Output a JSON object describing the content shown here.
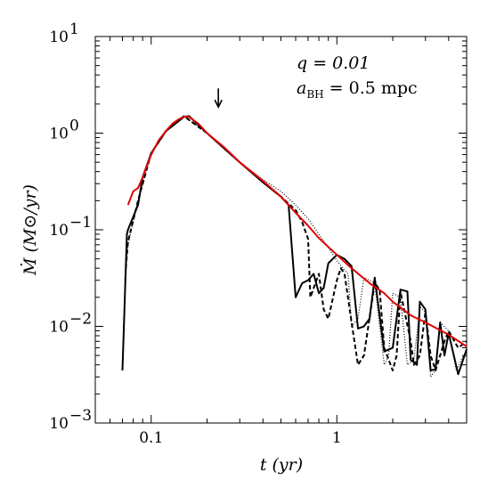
{
  "chart_data": {
    "type": "line",
    "title": "",
    "xlabel": "t   (yr)",
    "ylabel": "Ṁ   (M⊙/yr)",
    "xscale": "log",
    "yscale": "log",
    "xlim": [
      0.05,
      5
    ],
    "ylim": [
      0.001,
      10
    ],
    "x_ticks": [
      {
        "value": 0.1,
        "label": "0.1"
      },
      {
        "value": 1,
        "label": "1"
      }
    ],
    "y_ticks": [
      {
        "value": 0.001,
        "base": "10",
        "exp": "−3"
      },
      {
        "value": 0.01,
        "base": "10",
        "exp": "−2"
      },
      {
        "value": 0.1,
        "base": "10",
        "exp": "−1"
      },
      {
        "value": 1,
        "base": "10",
        "exp": "0"
      },
      {
        "value": 10,
        "base": "10",
        "exp": "1"
      }
    ],
    "grid": false,
    "annotations": {
      "line1": "q = 0.01",
      "line2": "a",
      "line2_sub": "BH",
      "line2_rest": " = 0.5 mpc",
      "arrow_x": 0.23,
      "arrow_y": 1.9
    },
    "series": [
      {
        "style": "red-solid",
        "color": "#e00000",
        "x": [
          0.075,
          0.08,
          0.085,
          0.09,
          0.1,
          0.11,
          0.12,
          0.13,
          0.14,
          0.15,
          0.16,
          0.18,
          0.2,
          0.25,
          0.3,
          0.4,
          0.5,
          0.6,
          0.7,
          0.8,
          1.0,
          1.2,
          1.5,
          1.8,
          2.0,
          2.5,
          3.0,
          4.0,
          5.0
        ],
        "y": [
          0.18,
          0.25,
          0.27,
          0.35,
          0.6,
          0.85,
          1.05,
          1.25,
          1.38,
          1.48,
          1.47,
          1.25,
          1.0,
          0.7,
          0.5,
          0.32,
          0.22,
          0.15,
          0.11,
          0.082,
          0.055,
          0.04,
          0.028,
          0.022,
          0.018,
          0.013,
          0.011,
          0.0082,
          0.0062
        ]
      },
      {
        "style": "black-solid",
        "color": "#000000",
        "x": [
          0.07,
          0.074,
          0.075,
          0.085,
          0.09,
          0.1,
          0.12,
          0.15,
          0.16,
          0.2,
          0.3,
          0.4,
          0.5,
          0.55,
          0.6,
          0.65,
          0.7,
          0.75,
          0.8,
          0.85,
          0.9,
          1.0,
          1.1,
          1.2,
          1.3,
          1.4,
          1.5,
          1.6,
          1.8,
          2.0,
          2.2,
          2.4,
          2.5,
          2.7,
          2.8,
          3.0,
          3.2,
          3.4,
          3.6,
          3.8,
          4.0,
          4.5,
          5.0
        ],
        "y": [
          0.0035,
          0.09,
          0.1,
          0.18,
          0.35,
          0.62,
          1.05,
          1.47,
          1.5,
          1.0,
          0.5,
          0.31,
          0.22,
          0.18,
          0.02,
          0.028,
          0.03,
          0.035,
          0.022,
          0.025,
          0.045,
          0.055,
          0.05,
          0.042,
          0.0095,
          0.01,
          0.012,
          0.032,
          0.0055,
          0.006,
          0.024,
          0.023,
          0.0045,
          0.004,
          0.018,
          0.015,
          0.0035,
          0.0036,
          0.011,
          0.005,
          0.0085,
          0.0032,
          0.0058
        ]
      },
      {
        "style": "black-dashed",
        "color": "#000000",
        "x": [
          0.073,
          0.075,
          0.085,
          0.1,
          0.12,
          0.15,
          0.2,
          0.3,
          0.4,
          0.5,
          0.6,
          0.65,
          0.7,
          0.72,
          0.8,
          0.85,
          0.9,
          1.0,
          1.05,
          1.1,
          1.2,
          1.3,
          1.4,
          1.6,
          1.7,
          1.8,
          2.0,
          2.1,
          2.2,
          2.5,
          2.6,
          2.8,
          3.0,
          3.2,
          3.4,
          3.8,
          4.0,
          4.5,
          5.0
        ],
        "y": [
          0.04,
          0.075,
          0.2,
          0.62,
          1.05,
          1.5,
          1.0,
          0.5,
          0.31,
          0.22,
          0.16,
          0.12,
          0.08,
          0.02,
          0.035,
          0.015,
          0.012,
          0.03,
          0.04,
          0.035,
          0.011,
          0.004,
          0.005,
          0.028,
          0.024,
          0.006,
          0.0035,
          0.005,
          0.023,
          0.007,
          0.004,
          0.005,
          0.014,
          0.005,
          0.0035,
          0.007,
          0.009,
          0.006,
          0.007
        ]
      },
      {
        "style": "black-dotted",
        "color": "#000000",
        "x": [
          0.072,
          0.075,
          0.085,
          0.1,
          0.12,
          0.15,
          0.2,
          0.3,
          0.4,
          0.5,
          0.6,
          0.7,
          0.8,
          0.9,
          1.0,
          1.1,
          1.15,
          1.2,
          1.3,
          1.4,
          1.6,
          1.8,
          1.9,
          2.0,
          2.2,
          2.4,
          2.6,
          2.8,
          3.0,
          3.2,
          3.4,
          3.6,
          4.0,
          4.4,
          4.8
        ],
        "y": [
          0.03,
          0.07,
          0.2,
          0.62,
          1.05,
          1.5,
          1.0,
          0.5,
          0.33,
          0.25,
          0.18,
          0.13,
          0.09,
          0.065,
          0.048,
          0.038,
          0.035,
          0.01,
          0.012,
          0.032,
          0.028,
          0.004,
          0.005,
          0.022,
          0.02,
          0.004,
          0.0045,
          0.016,
          0.014,
          0.003,
          0.0035,
          0.011,
          0.009,
          0.0035,
          0.005
        ]
      }
    ]
  }
}
